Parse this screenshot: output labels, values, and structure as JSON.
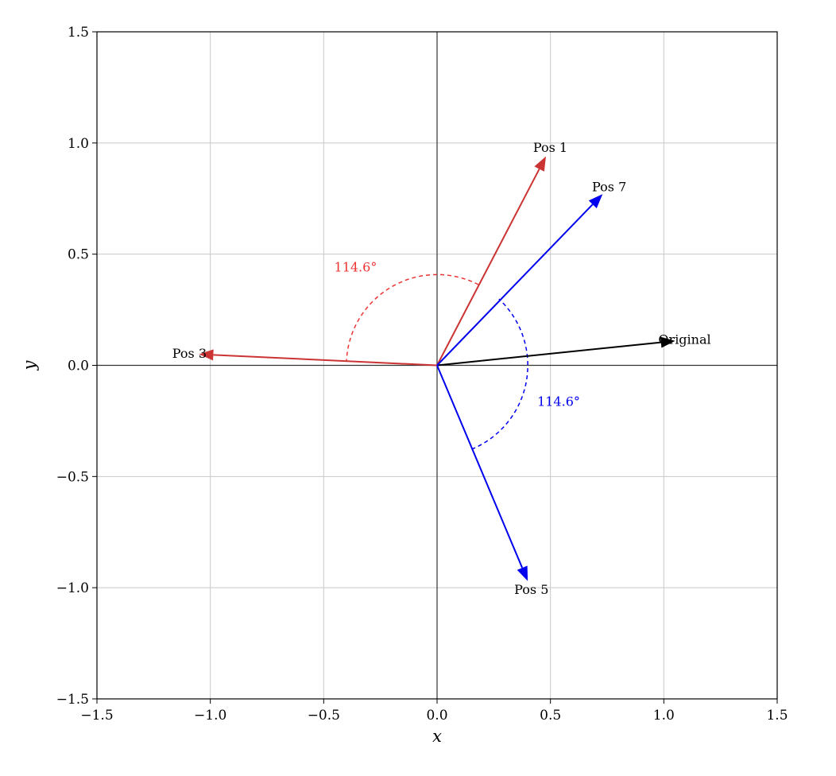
{
  "chart_data": {
    "type": "vector",
    "title": "",
    "xlabel": "x",
    "ylabel": "y",
    "xlim": [
      -1.5,
      1.5
    ],
    "ylim": [
      -1.5,
      1.5
    ],
    "xticks": [
      -1.5,
      -1.0,
      -0.5,
      0.0,
      0.5,
      1.0,
      1.5
    ],
    "yticks": [
      -1.5,
      -1.0,
      -0.5,
      0.0,
      0.5,
      1.0,
      1.5
    ],
    "xtick_labels": [
      "−1.5",
      "−1.0",
      "−0.5",
      "0.0",
      "0.5",
      "1.0",
      "1.5"
    ],
    "ytick_labels": [
      "−1.5",
      "−1.0",
      "−0.5",
      "0.0",
      "0.5",
      "1.0",
      "1.5"
    ],
    "grid": true,
    "vectors": [
      {
        "label": "Original",
        "x": 1.05,
        "y": 0.11,
        "color": "#000000"
      },
      {
        "label": "Pos 1",
        "x": 0.48,
        "y": 0.94,
        "color": "#cc3333"
      },
      {
        "label": "Pos 3",
        "x": -1.05,
        "y": 0.05,
        "color": "#cc3333"
      },
      {
        "label": "Pos 5",
        "x": 0.4,
        "y": -0.97,
        "color": "#0000ee"
      },
      {
        "label": "Pos 7",
        "x": 0.73,
        "y": 0.77,
        "color": "#0000ee"
      }
    ],
    "angle_arcs": [
      {
        "label": "114.6°",
        "radius": 0.4,
        "from_deg": 62.9,
        "to_deg": 177.5,
        "color": "#ee3333"
      },
      {
        "label": "114.6°",
        "radius": 0.4,
        "from_deg": -67.6,
        "to_deg": 47.0,
        "color": "#0000ee"
      }
    ]
  }
}
